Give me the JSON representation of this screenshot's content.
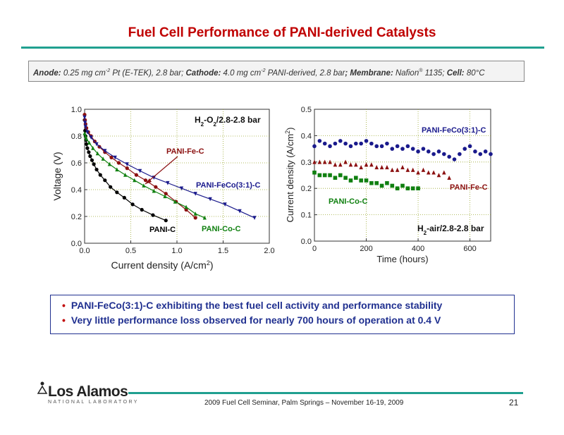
{
  "slide": {
    "title": "Fuel Cell Performance of PANI-derived Catalysts",
    "conditions": {
      "anode_label": "Anode:",
      "anode_text": "0.25 mg cm",
      "anode_exp": "-2",
      "anode_rest": " Pt (E-TEK), 2.8 bar; ",
      "cathode_label": "Cathode:",
      "cathode_text": "4.0 mg cm",
      "cathode_exp": "-2",
      "cathode_rest": " PANI-derived, 2.8 bar",
      "membrane_label": "; Membrane:",
      "membrane_text": " Nafion",
      "membrane_sup": "®",
      "membrane_rest": " 1135;",
      "cell_label": "Cell:",
      "cell_text": " 80°C"
    },
    "bullets": [
      "PANI-FeCo(3:1)-C exhibiting the best fuel cell activity and performance stability",
      "Very little performance loss observed for nearly 700 hours of operation at 0.4 V"
    ],
    "logo_main": "Los Alamos",
    "logo_sub": "NATIONAL LABORATORY",
    "footer": "2009 Fuel Cell Seminar, Palm Springs – November 16-19, 2009",
    "page_number": "21"
  },
  "chart_data": [
    {
      "type": "line",
      "title": "H2-O2/2.8-2.8 bar",
      "xlabel": "Current density (A/cm2)",
      "ylabel": "Voltage (V)",
      "xlim": [
        0,
        2.0
      ],
      "ylim": [
        0,
        1.0
      ],
      "xticks": [
        "0.0",
        "0.5",
        "1.0",
        "1.5",
        "2.0"
      ],
      "yticks": [
        "0.0",
        "0.2",
        "0.4",
        "0.6",
        "0.8",
        "1.0"
      ],
      "grid": true,
      "series": [
        {
          "name": "PANI-C",
          "color": "#000000",
          "marker": "circle",
          "x": [
            0.0,
            0.005,
            0.01,
            0.015,
            0.02,
            0.03,
            0.045,
            0.06,
            0.08,
            0.1,
            0.13,
            0.17,
            0.22,
            0.28,
            0.35,
            0.43,
            0.52,
            0.62,
            0.74,
            0.88
          ],
          "y": [
            0.92,
            0.84,
            0.8,
            0.77,
            0.74,
            0.71,
            0.68,
            0.65,
            0.62,
            0.59,
            0.55,
            0.51,
            0.47,
            0.42,
            0.38,
            0.34,
            0.29,
            0.25,
            0.21,
            0.17
          ]
        },
        {
          "name": "PANI-Fe-C",
          "color": "#8b1010",
          "marker": "circle",
          "x": [
            0.0,
            0.005,
            0.01,
            0.02,
            0.04,
            0.07,
            0.11,
            0.16,
            0.22,
            0.29,
            0.37,
            0.46,
            0.56,
            0.66,
            0.77,
            0.88,
            0.99,
            1.1,
            1.2
          ],
          "y": [
            0.96,
            0.92,
            0.89,
            0.86,
            0.83,
            0.8,
            0.76,
            0.72,
            0.68,
            0.64,
            0.6,
            0.56,
            0.51,
            0.47,
            0.42,
            0.37,
            0.31,
            0.25,
            0.19
          ]
        },
        {
          "name": "PANI-Co-C",
          "color": "#108010",
          "marker": "triangle-up",
          "x": [
            0.0,
            0.01,
            0.02,
            0.05,
            0.09,
            0.14,
            0.2,
            0.27,
            0.35,
            0.44,
            0.54,
            0.64,
            0.75,
            0.87,
            0.98,
            1.1,
            1.2,
            1.3
          ],
          "y": [
            0.82,
            0.8,
            0.78,
            0.75,
            0.71,
            0.67,
            0.63,
            0.59,
            0.55,
            0.51,
            0.47,
            0.43,
            0.39,
            0.35,
            0.31,
            0.27,
            0.22,
            0.19
          ]
        },
        {
          "name": "PANI-FeCo(3:1)-C",
          "color": "#1a1a8c",
          "marker": "triangle-down",
          "x": [
            0.0,
            0.005,
            0.01,
            0.03,
            0.07,
            0.13,
            0.22,
            0.33,
            0.46,
            0.6,
            0.75,
            0.9,
            1.05,
            1.2,
            1.36,
            1.52,
            1.68,
            1.84
          ],
          "y": [
            0.94,
            0.9,
            0.87,
            0.83,
            0.79,
            0.74,
            0.69,
            0.64,
            0.59,
            0.54,
            0.49,
            0.45,
            0.41,
            0.37,
            0.33,
            0.29,
            0.24,
            0.19
          ]
        }
      ]
    },
    {
      "type": "scatter",
      "title": "H2-air/2.8-2.8 bar",
      "xlabel": "Time (hours)",
      "ylabel": "Current density (A/cm2)",
      "xlim": [
        0,
        680
      ],
      "ylim": [
        0,
        0.5
      ],
      "xticks": [
        "0",
        "200",
        "400",
        "600"
      ],
      "yticks": [
        "0.0",
        "0.1",
        "0.2",
        "0.3",
        "0.4",
        "0.5"
      ],
      "grid": true,
      "series": [
        {
          "name": "PANI-FeCo(3:1)-C",
          "color": "#1a1a8c",
          "marker": "circle",
          "x": [
            0,
            20,
            40,
            60,
            80,
            100,
            120,
            140,
            160,
            180,
            200,
            220,
            240,
            260,
            280,
            300,
            320,
            340,
            360,
            380,
            400,
            420,
            440,
            460,
            480,
            500,
            520,
            540,
            560,
            580,
            600,
            620,
            640,
            660,
            680
          ],
          "y": [
            0.36,
            0.38,
            0.37,
            0.36,
            0.37,
            0.38,
            0.37,
            0.36,
            0.37,
            0.37,
            0.38,
            0.37,
            0.36,
            0.36,
            0.37,
            0.35,
            0.36,
            0.35,
            0.36,
            0.35,
            0.34,
            0.35,
            0.34,
            0.33,
            0.34,
            0.33,
            0.32,
            0.31,
            0.33,
            0.35,
            0.36,
            0.34,
            0.33,
            0.34,
            0.33
          ]
        },
        {
          "name": "PANI-Fe-C",
          "color": "#8b1010",
          "marker": "triangle-up",
          "x": [
            0,
            20,
            40,
            60,
            80,
            100,
            120,
            140,
            160,
            180,
            200,
            220,
            240,
            260,
            280,
            300,
            320,
            340,
            360,
            380,
            400,
            420,
            440,
            460,
            480,
            500,
            520
          ],
          "y": [
            0.3,
            0.3,
            0.3,
            0.3,
            0.29,
            0.29,
            0.3,
            0.29,
            0.29,
            0.28,
            0.29,
            0.29,
            0.28,
            0.28,
            0.28,
            0.27,
            0.27,
            0.28,
            0.27,
            0.27,
            0.26,
            0.27,
            0.26,
            0.26,
            0.25,
            0.26,
            0.24
          ]
        },
        {
          "name": "PANI-Co-C",
          "color": "#108010",
          "marker": "square",
          "x": [
            0,
            20,
            40,
            60,
            80,
            100,
            120,
            140,
            160,
            180,
            200,
            220,
            240,
            260,
            280,
            300,
            320,
            340,
            360,
            380,
            400
          ],
          "y": [
            0.26,
            0.25,
            0.25,
            0.25,
            0.24,
            0.25,
            0.24,
            0.23,
            0.24,
            0.23,
            0.23,
            0.22,
            0.22,
            0.21,
            0.22,
            0.21,
            0.2,
            0.21,
            0.2,
            0.2,
            0.2
          ]
        }
      ]
    }
  ]
}
